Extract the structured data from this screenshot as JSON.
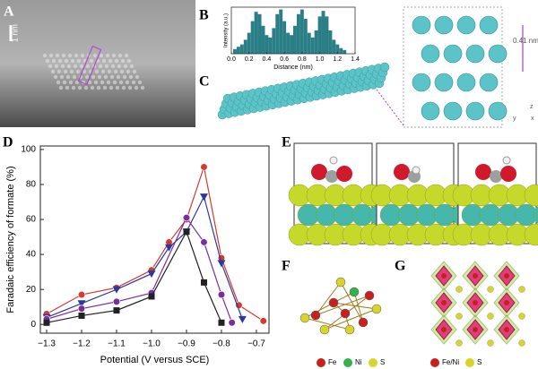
{
  "panel_labels": [
    "A",
    "B",
    "C",
    "D",
    "E",
    "F",
    "G"
  ],
  "panel_a": {
    "scale_bar": "1 nm"
  },
  "panel_c": {
    "spacing": "0.41 nm",
    "axes": [
      "z",
      "y",
      "x"
    ]
  },
  "panel_f": {
    "legend": [
      "Fe",
      "Ni",
      "S"
    ]
  },
  "panel_g": {
    "legend": [
      "Fe/Ni",
      "S"
    ]
  },
  "chart_data": [
    {
      "type": "histogram",
      "xlabel": "Distance (nm)",
      "ylabel": "Intensity (a.u.)",
      "color": "#2a7f86",
      "bins": [
        0.02,
        0.06,
        0.1,
        0.14,
        0.18,
        0.22,
        0.26,
        0.3,
        0.34,
        0.38,
        0.42,
        0.46,
        0.5,
        0.54,
        0.58,
        0.62,
        0.66,
        0.7,
        0.74,
        0.78,
        0.82,
        0.86,
        0.9,
        0.94,
        0.98,
        1.02,
        1.06,
        1.1,
        1.14,
        1.18,
        1.22,
        1.26,
        1.3
      ],
      "counts": [
        0.1,
        0.15,
        0.2,
        0.3,
        0.45,
        0.7,
        0.9,
        0.85,
        0.6,
        0.4,
        0.35,
        0.55,
        0.85,
        0.95,
        0.7,
        0.45,
        0.4,
        0.6,
        0.85,
        0.95,
        0.75,
        0.45,
        0.35,
        0.5,
        0.8,
        0.92,
        0.8,
        0.5,
        0.3,
        0.2,
        0.12,
        0.08
      ],
      "xlim": [
        0,
        1.4
      ],
      "ylim": [
        0,
        1
      ],
      "xticks": [
        {
          "value": 0,
          "label": "0.0"
        },
        0.2,
        0.4,
        0.6,
        0.8,
        {
          "value": 1,
          "label": "1.0"
        },
        1.2,
        1.4
      ]
    },
    {
      "type": "line",
      "xlabel": "Potential (V versus SCE)",
      "ylabel": "Faradaic efficiency of formate (%)",
      "xlim": [
        -1.318,
        -0.664
      ],
      "ylim": [
        -5,
        102
      ],
      "xticks": [
        {
          "value": -1.3,
          "label": "−1.3"
        },
        {
          "value": -1.2,
          "label": "−1.2"
        },
        {
          "value": -1.1,
          "label": "−1.1"
        },
        {
          "value": -1.0,
          "label": "−1.0"
        },
        {
          "value": -0.9,
          "label": "−0.9"
        },
        {
          "value": -0.8,
          "label": "−0.8"
        },
        {
          "value": -0.7,
          "label": "−0.7"
        }
      ],
      "yticks": [
        0,
        20,
        40,
        60,
        80,
        100
      ],
      "series": [
        {
          "color": "#d43a2f",
          "marker": "circle",
          "x": [
            -1.3,
            -1.2,
            -1.1,
            -1.0,
            -0.95,
            -0.9,
            -0.85,
            -0.8,
            -0.75,
            -0.68
          ],
          "values": [
            6,
            17,
            21,
            31,
            47,
            60,
            90,
            38,
            11,
            2
          ]
        },
        {
          "color": "#2b3a9a",
          "marker": "triangle",
          "x": [
            -1.3,
            -1.2,
            -1.1,
            -1.0,
            -0.95,
            -0.9,
            -0.85,
            -0.8,
            -0.74
          ],
          "values": [
            4,
            12,
            20,
            29,
            44,
            53,
            73,
            35,
            3
          ]
        },
        {
          "color": "#7b2d9e",
          "marker": "circle",
          "x": [
            -1.3,
            -1.2,
            -1.1,
            -1.0,
            -0.9,
            -0.85,
            -0.8,
            -0.77
          ],
          "values": [
            3,
            9,
            13,
            18,
            61,
            47,
            17,
            1
          ]
        },
        {
          "color": "#222222",
          "marker": "square",
          "x": [
            -1.3,
            -1.2,
            -1.1,
            -1.0,
            -0.9,
            -0.85,
            -0.8
          ],
          "values": [
            1,
            5,
            8,
            16,
            53,
            24,
            1
          ]
        }
      ]
    }
  ]
}
